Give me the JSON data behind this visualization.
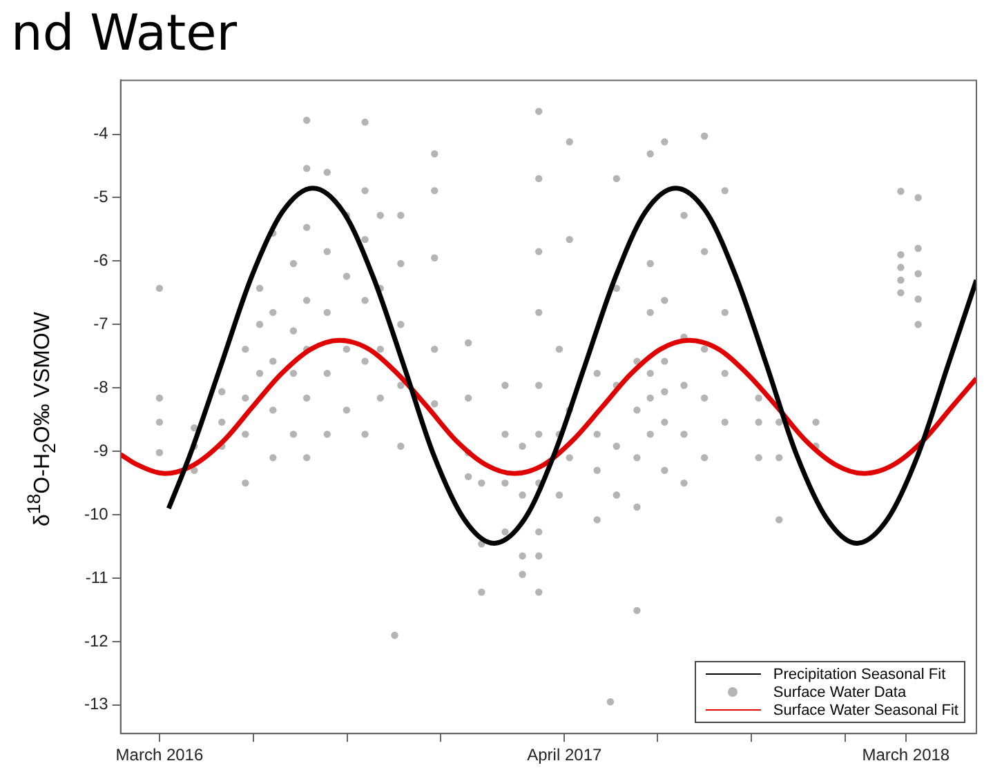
{
  "chart_data": {
    "type": "scatter",
    "title": "nd Water",
    "ylabel": "δ$^{18}$O-H$_{2}$O‰  VSMOW",
    "xlim": [
      "2016-01-23",
      "2018-05-09"
    ],
    "ylim": [
      -13.45,
      -3.15
    ],
    "xticks": [
      {
        "value": "2016-03-01",
        "label": "March 2016"
      },
      {
        "value": "2016-06-01",
        "label": null
      },
      {
        "value": "2016-09-01",
        "label": null
      },
      {
        "value": "2016-12-01",
        "label": null
      },
      {
        "value": "2017-04-01",
        "label": "April 2017"
      },
      {
        "value": "2017-07-01",
        "label": null
      },
      {
        "value": "2017-10-01",
        "label": null
      },
      {
        "value": "2018-01-01",
        "label": null
      },
      {
        "value": "2018-03-01",
        "label": "March 2018"
      }
    ],
    "yticks": [
      -13,
      -12,
      -11,
      -10,
      -9,
      -8,
      -7,
      -6,
      -5,
      -4
    ],
    "grid": false,
    "legend": "bottom right",
    "series": [
      {
        "name": "Precipitation Seasonal Fit",
        "type": "line",
        "color": "#000000",
        "marker": "none",
        "line_style": "solid",
        "x": [
          "2016-03-10",
          "2016-03-31",
          "2016-04-30",
          "2016-05-30",
          "2016-06-29",
          "2016-07-29",
          "2016-08-28",
          "2016-09-26",
          "2016-10-26",
          "2016-11-24",
          "2016-12-24",
          "2017-01-22",
          "2017-02-21",
          "2017-03-22",
          "2017-04-21",
          "2017-05-21",
          "2017-06-19",
          "2017-07-19",
          "2017-08-18",
          "2017-09-16",
          "2017-10-16",
          "2017-11-14",
          "2017-12-14",
          "2018-01-12",
          "2018-02-11",
          "2018-03-13",
          "2018-04-11",
          "2018-05-09"
        ],
        "values": [
          -9.9,
          -9.05,
          -7.65,
          -6.25,
          -5.23,
          -4.85,
          -5.23,
          -6.25,
          -7.65,
          -9.05,
          -10.07,
          -10.45,
          -10.07,
          -9.05,
          -7.65,
          -6.25,
          -5.23,
          -4.85,
          -5.23,
          -6.25,
          -7.65,
          -9.05,
          -10.07,
          -10.45,
          -10.07,
          -9.05,
          -7.65,
          -6.3
        ]
      },
      {
        "name": "Surface Water Data",
        "type": "scatter",
        "color": "#b4b4b4",
        "marker": "circle",
        "x": [
          "2016-03-01",
          "2016-03-01",
          "2016-03-01",
          "2016-03-01",
          "2016-04-04",
          "2016-04-04",
          "2016-04-04",
          "2016-05-01",
          "2016-05-01",
          "2016-05-01",
          "2016-05-24",
          "2016-05-24",
          "2016-05-24",
          "2016-05-24",
          "2016-06-07",
          "2016-06-07",
          "2016-06-07",
          "2016-06-20",
          "2016-06-20",
          "2016-06-20",
          "2016-06-20",
          "2016-06-20",
          "2016-07-10",
          "2016-07-10",
          "2016-07-10",
          "2016-07-10",
          "2016-07-23",
          "2016-07-23",
          "2016-07-23",
          "2016-07-23",
          "2016-07-23",
          "2016-07-23",
          "2016-07-23",
          "2016-08-12",
          "2016-08-12",
          "2016-08-12",
          "2016-08-12",
          "2016-08-12",
          "2016-08-31",
          "2016-08-31",
          "2016-08-31",
          "2016-08-31",
          "2016-09-18",
          "2016-09-18",
          "2016-09-18",
          "2016-09-18",
          "2016-09-18",
          "2016-09-18",
          "2016-10-03",
          "2016-10-03",
          "2016-10-03",
          "2016-10-03",
          "2016-10-23",
          "2016-10-23",
          "2016-10-23",
          "2016-10-23",
          "2016-10-23",
          "2016-10-17",
          "2016-11-25",
          "2016-11-25",
          "2016-11-25",
          "2016-11-25",
          "2016-11-25",
          "2016-12-28",
          "2016-12-28",
          "2016-12-28",
          "2016-12-28",
          "2017-01-10",
          "2017-01-10",
          "2017-01-10",
          "2017-02-02",
          "2017-02-02",
          "2017-02-02",
          "2017-02-02",
          "2017-02-19",
          "2017-02-19",
          "2017-02-19",
          "2017-02-19",
          "2017-03-07",
          "2017-03-07",
          "2017-03-07",
          "2017-03-07",
          "2017-03-07",
          "2017-03-07",
          "2017-03-07",
          "2017-03-07",
          "2017-03-07",
          "2017-03-07",
          "2017-03-27",
          "2017-03-27",
          "2017-03-27",
          "2017-04-06",
          "2017-04-06",
          "2017-04-06",
          "2017-04-06",
          "2017-05-03",
          "2017-05-03",
          "2017-05-03",
          "2017-05-03",
          "2017-05-16",
          "2017-05-22",
          "2017-05-22",
          "2017-05-22",
          "2017-05-22",
          "2017-05-22",
          "2017-06-11",
          "2017-06-11",
          "2017-06-11",
          "2017-06-11",
          "2017-06-11",
          "2017-06-24",
          "2017-06-24",
          "2017-06-24",
          "2017-06-24",
          "2017-06-24",
          "2017-06-24",
          "2017-07-08",
          "2017-07-08",
          "2017-07-08",
          "2017-07-08",
          "2017-07-08",
          "2017-07-08",
          "2017-07-27",
          "2017-07-27",
          "2017-07-27",
          "2017-07-27",
          "2017-07-27",
          "2017-08-16",
          "2017-08-16",
          "2017-08-16",
          "2017-08-16",
          "2017-08-16",
          "2017-09-05",
          "2017-09-05",
          "2017-09-05",
          "2017-09-05",
          "2017-10-08",
          "2017-10-08",
          "2017-10-08",
          "2017-10-28",
          "2017-10-28",
          "2017-10-28",
          "2017-12-03",
          "2017-12-03",
          "2018-02-24",
          "2018-02-24",
          "2018-02-24",
          "2018-02-24",
          "2018-02-24",
          "2018-03-13",
          "2018-03-13",
          "2018-03-13",
          "2018-03-13",
          "2018-03-13"
        ],
        "values": [
          -6.43,
          -8.16,
          -8.54,
          -9.02,
          -9.3,
          -8.92,
          -8.63,
          -8.06,
          -8.54,
          -8.92,
          -7.39,
          -8.16,
          -8.73,
          -9.5,
          -6.43,
          -7.0,
          -7.77,
          -5.56,
          -6.81,
          -7.58,
          -8.35,
          -9.1,
          -6.04,
          -7.1,
          -7.77,
          -8.73,
          -3.78,
          -4.54,
          -5.47,
          -6.62,
          -7.39,
          -8.16,
          -9.1,
          -4.6,
          -5.85,
          -6.81,
          -7.77,
          -8.73,
          -5.28,
          -6.24,
          -7.39,
          -8.35,
          -3.81,
          -4.89,
          -5.66,
          -6.62,
          -7.58,
          -8.73,
          -5.28,
          -6.43,
          -7.39,
          -8.16,
          -5.28,
          -6.04,
          -7.0,
          -7.96,
          -8.92,
          -11.9,
          -4.31,
          -4.89,
          -5.95,
          -7.39,
          -8.25,
          -7.29,
          -8.16,
          -9.02,
          -9.4,
          -9.5,
          -10.46,
          -11.22,
          -7.96,
          -8.73,
          -9.5,
          -10.27,
          -8.92,
          -9.69,
          -10.65,
          -10.94,
          -3.64,
          -4.7,
          -5.85,
          -6.81,
          -7.96,
          -8.73,
          -9.5,
          -10.27,
          -10.65,
          -11.22,
          -7.39,
          -8.73,
          -9.69,
          -4.12,
          -5.66,
          -8.35,
          -9.1,
          -7.77,
          -8.73,
          -9.3,
          -10.08,
          -12.95,
          -4.7,
          -6.43,
          -7.96,
          -8.92,
          -9.69,
          -7.58,
          -8.35,
          -9.1,
          -9.88,
          -11.51,
          -4.31,
          -6.04,
          -6.81,
          -7.77,
          -8.16,
          -8.73,
          -4.12,
          -6.62,
          -7.58,
          -8.06,
          -8.54,
          -9.3,
          -5.28,
          -7.2,
          -7.96,
          -8.73,
          -9.5,
          -4.03,
          -5.85,
          -7.39,
          -8.16,
          -9.1,
          -4.89,
          -6.81,
          -7.77,
          -8.54,
          -8.16,
          -8.54,
          -9.1,
          -9.1,
          -8.54,
          -10.08,
          -8.54,
          -8.92,
          -4.9,
          -5.9,
          -6.1,
          -6.3,
          -6.5,
          -5.0,
          -5.8,
          -6.2,
          -6.6,
          -7.0
        ]
      },
      {
        "name": "Surface Water Seasonal Fit",
        "type": "line",
        "color": "#e00000",
        "marker": "none",
        "line_style": "solid",
        "x": [
          "2016-01-23",
          "2016-02-08",
          "2016-03-07",
          "2016-04-04",
          "2016-05-03",
          "2016-05-31",
          "2016-06-28",
          "2016-07-27",
          "2016-08-24",
          "2016-09-22",
          "2016-10-20",
          "2016-11-18",
          "2016-12-16",
          "2017-01-14",
          "2017-02-11",
          "2017-03-12",
          "2017-04-09",
          "2017-05-08",
          "2017-06-05",
          "2017-07-04",
          "2017-08-01",
          "2017-08-30",
          "2017-09-27",
          "2017-10-26",
          "2017-11-23",
          "2017-12-22",
          "2018-01-19",
          "2018-02-17",
          "2018-03-18",
          "2018-04-15",
          "2018-05-09"
        ],
        "values": [
          -9.05,
          -9.21,
          -9.35,
          -9.21,
          -8.83,
          -8.3,
          -7.78,
          -7.39,
          -7.25,
          -7.39,
          -7.78,
          -8.3,
          -8.83,
          -9.21,
          -9.35,
          -9.21,
          -8.83,
          -8.3,
          -7.78,
          -7.39,
          -7.25,
          -7.39,
          -7.78,
          -8.3,
          -8.83,
          -9.21,
          -9.35,
          -9.21,
          -8.83,
          -8.3,
          -7.85
        ]
      }
    ]
  }
}
